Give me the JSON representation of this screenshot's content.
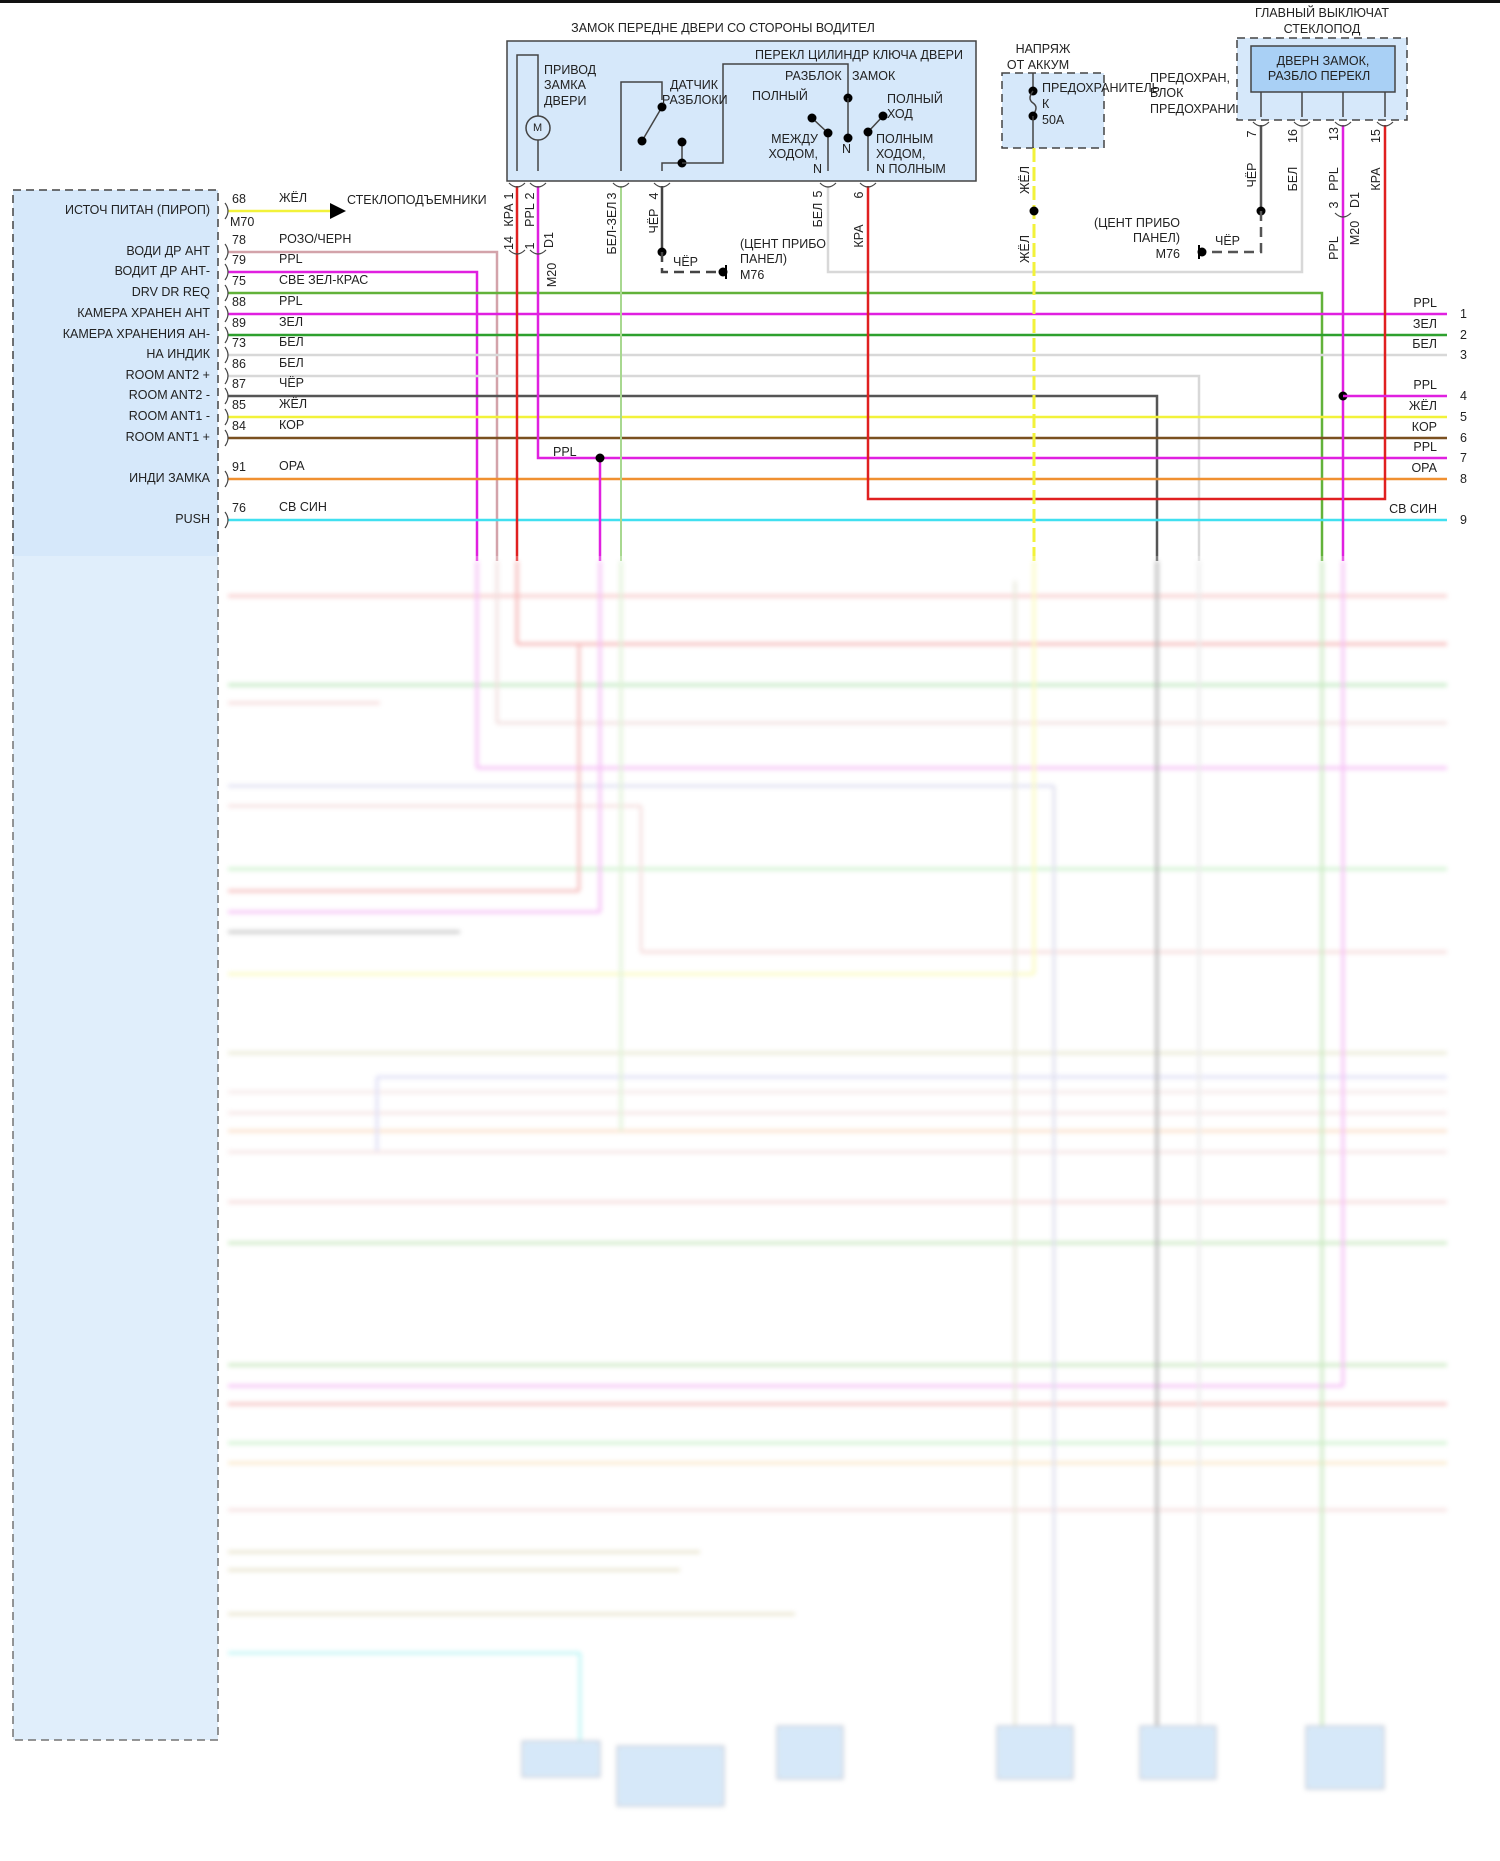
{
  "door_lock": {
    "title": "ЗАМОК ПЕРЕДНЕ ДВЕРИ СО СТОРОНЫ ВОДИТЕЛ",
    "key_cylinder_switch": "ПЕРЕКЛ ЦИЛИНДР КЛЮЧА ДВЕРИ",
    "actuator": [
      "ПРИВОД",
      "ЗАМКА",
      "ДВЕРИ"
    ],
    "motor_symbol": "M",
    "sensor": [
      "ДАТЧИК",
      "РАЗБЛОКИ"
    ],
    "unlock": "РАЗБЛОК",
    "lock": "ЗАМОК",
    "full": "ПОЛНЫЙ",
    "full_stroke": [
      "ПОЛНЫЙ",
      "ХОД"
    ],
    "between": [
      "МЕЖДУ",
      "ХОДОМ,",
      "N"
    ],
    "neutral": "N",
    "full_stroke_n": [
      "ПОЛНЫМ",
      "ХОДОМ,",
      "N ПОЛНЫМ"
    ],
    "pins": [
      {
        "num": "1",
        "color": "КРА",
        "conn_pin": "14"
      },
      {
        "num": "2",
        "color": "PPL",
        "conn_pin": "1"
      },
      {
        "num": "3",
        "color": "БЕЛ-ЗЕЛ"
      },
      {
        "num": "4",
        "color": "ЧЁР"
      },
      {
        "num": "5",
        "color": "БЕЛ"
      },
      {
        "num": "6",
        "color": "КРА"
      }
    ],
    "connector_d1": "D1",
    "connector_m20": "M20",
    "ground_wire": "ЧЁР",
    "ground_location": [
      "(ЦЕНТ ПРИБО",
      "ПАНЕЛ)",
      "M76"
    ]
  },
  "battery": {
    "title": [
      "НАПРЯЖ",
      "ОТ АККУМ"
    ],
    "fuse": [
      "ПРЕДОХРАНИТЕЛЬ",
      "К",
      "50A"
    ],
    "fuse_block": [
      "ПРЕДОХРАН,",
      "БЛОК",
      "ПРЕДОХРАНИ"
    ],
    "wire_color": "ЖЁЛ"
  },
  "main_switch": {
    "title": [
      "ГЛАВНЫЙ ВЫКЛЮЧАТ",
      "СТЕКЛОПОД"
    ],
    "inner": [
      "ДВЕРН ЗАМОК,",
      "РАЗБЛО ПЕРЕКЛ"
    ],
    "pins": [
      {
        "num": "7",
        "color": "ЧЁР"
      },
      {
        "num": "16",
        "color": "БЕЛ"
      },
      {
        "num": "13",
        "color": "PPL"
      },
      {
        "num": "15",
        "color": "КРА"
      }
    ],
    "conn_pin": "3",
    "conn_color_below": "PPL",
    "connector_d1": "D1",
    "connector_m20": "M20",
    "ground_wire": "ЧЁР",
    "ground_location": [
      "(ЦЕНТ ПРИБО",
      "ПАНЕЛ)",
      "M76"
    ]
  },
  "control_unit": {
    "connector": "M70",
    "power_dest": "СТЕКЛОПОДЪЕМНИКИ",
    "rows": [
      {
        "label": "ИСТОЧ ПИТАН (ПИРОП)",
        "pin": "68",
        "color_name": "ЖЁЛ",
        "color": "#f2f23a"
      },
      {
        "label": "ВОДИ ДР АНТ",
        "pin": "78",
        "color_name": "РОЗО/ЧЕРН",
        "color": "#d3a3aa"
      },
      {
        "label": "ВОДИТ ДР АНТ-",
        "pin": "79",
        "color_name": "PPL",
        "color": "#e020e0"
      },
      {
        "label": "DRV DR REQ",
        "pin": "75",
        "color_name": "СВЕ ЗЕЛ-КРАС",
        "color": "#62b23a"
      },
      {
        "label": "КАМЕРА ХРАНЕН АНТ",
        "pin": "88",
        "color_name": "PPL",
        "color": "#e020e0"
      },
      {
        "label": "КАМЕРА ХРАНЕНИЯ АН-",
        "pin": "89",
        "color_name": "ЗЕЛ",
        "color": "#2ea02e"
      },
      {
        "label": "НА ИНДИК",
        "pin": "73",
        "color_name": "БЕЛ",
        "color": "#d8d8d8"
      },
      {
        "label": "ROOM ANT2 +",
        "pin": "86",
        "color_name": "БЕЛ",
        "color": "#d8d8d8"
      },
      {
        "label": "ROOM ANT2 -",
        "pin": "87",
        "color_name": "ЧЁР",
        "color": "#555555"
      },
      {
        "label": "ROOM ANT1 -",
        "pin": "85",
        "color_name": "ЖЁЛ",
        "color": "#f2f23a"
      },
      {
        "label": "ROOM ANT1 +",
        "pin": "84",
        "color_name": "КОР",
        "color": "#7a5020"
      },
      {
        "label": "ИНДИ ЗАМКА",
        "pin": "91",
        "color_name": "ОРА",
        "color": "#f09030"
      },
      {
        "label": "PUSH",
        "pin": "76",
        "color_name": "СВ СИН",
        "color": "#40e0f0"
      }
    ],
    "junction_label": "PPL"
  },
  "right_terminals": [
    {
      "num": "1",
      "color_name": "PPL"
    },
    {
      "num": "2",
      "color_name": "ЗЕЛ"
    },
    {
      "num": "3",
      "color_name": "БЕЛ"
    },
    {
      "num": "4",
      "color_name": "PPL"
    },
    {
      "num": "5",
      "color_name": "ЖЁЛ"
    },
    {
      "num": "6",
      "color_name": "КОР"
    },
    {
      "num": "7",
      "color_name": "PPL"
    },
    {
      "num": "8",
      "color_name": "ОРА"
    },
    {
      "num": "9",
      "color_name": "СВ СИН"
    }
  ],
  "colors": {
    "panel_fill": "#d6e8fa",
    "switch_fill": "#a9d0f5",
    "red": "#e02020",
    "magenta": "#e020e0"
  }
}
